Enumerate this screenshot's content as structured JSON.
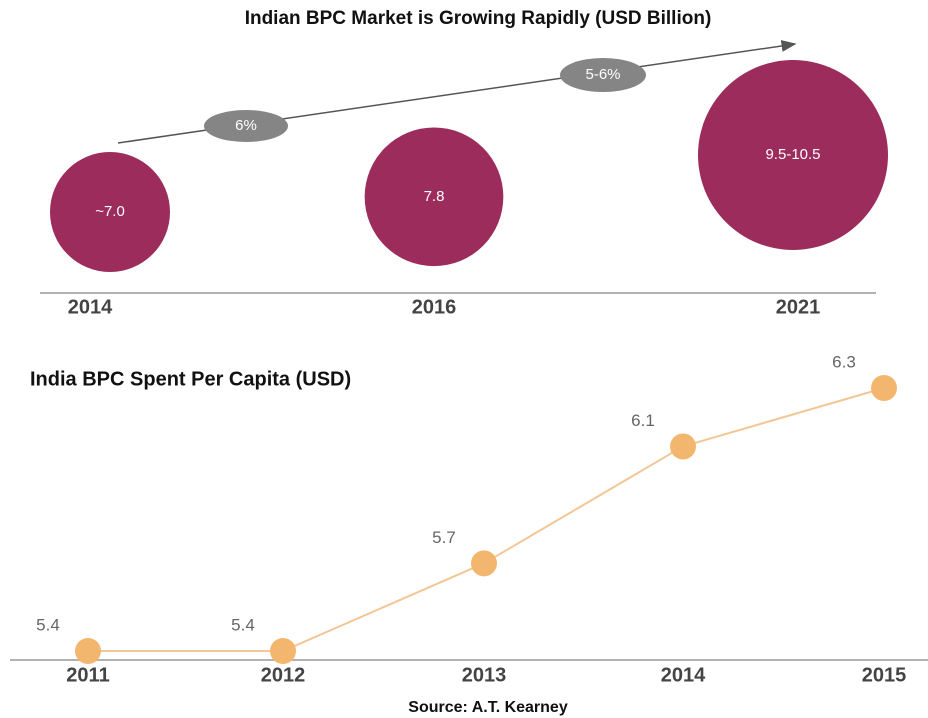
{
  "chart_data": [
    {
      "type": "bubble",
      "title": "Indian BPC Market is Growing Rapidly (USD Billion)",
      "categories": [
        "2014",
        "2016",
        "2021"
      ],
      "values": [
        7.0,
        7.8,
        10
      ],
      "value_labels": [
        "~7.0",
        "7.8",
        "9.5-10.5"
      ],
      "color": "#9c2c5c",
      "annotations": [
        "6%",
        "5-6%"
      ]
    },
    {
      "type": "line",
      "title": "India BPC Spent Per Capita (USD)",
      "categories": [
        "2011",
        "2012",
        "2013",
        "2014",
        "2015"
      ],
      "values": [
        5.4,
        5.4,
        5.7,
        6.1,
        6.3
      ],
      "color": "#f2b66e"
    }
  ],
  "source": "Source: A.T. Kearney"
}
